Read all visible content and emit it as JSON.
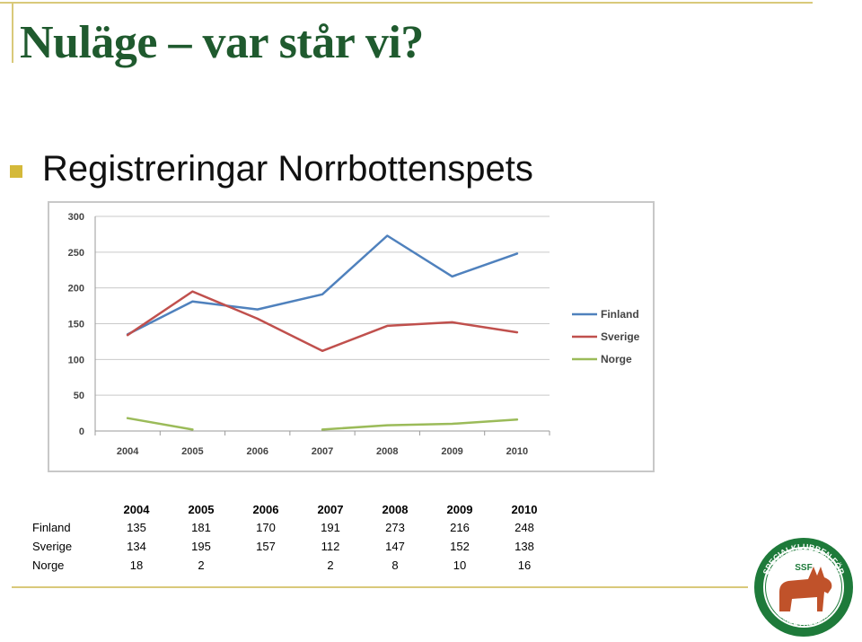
{
  "slide": {
    "title": "Nuläge – var står vi?",
    "bullet": "Registreringar Norrbottenspets"
  },
  "chart_data": {
    "type": "line",
    "categories": [
      "2004",
      "2005",
      "2006",
      "2007",
      "2008",
      "2009",
      "2010"
    ],
    "ylim": [
      0,
      300
    ],
    "yticks": [
      0,
      50,
      100,
      150,
      200,
      250,
      300
    ],
    "grid": true,
    "legend_position": "right",
    "series": [
      {
        "name": "Finland",
        "color": "#4f81bd",
        "values": [
          135,
          181,
          170,
          191,
          273,
          216,
          248
        ]
      },
      {
        "name": "Sverige",
        "color": "#c0504d",
        "values": [
          134,
          195,
          157,
          112,
          147,
          152,
          138
        ]
      },
      {
        "name": "Norge",
        "color": "#9bbb59",
        "values": [
          18,
          2,
          null,
          2,
          8,
          10,
          16
        ]
      }
    ]
  },
  "table": {
    "columns": [
      "2004",
      "2005",
      "2006",
      "2007",
      "2008",
      "2009",
      "2010"
    ],
    "rows": [
      {
        "label": "Finland",
        "values": [
          "135",
          "181",
          "170",
          "191",
          "273",
          "216",
          "248"
        ]
      },
      {
        "label": "Sverige",
        "values": [
          "134",
          "195",
          "157",
          "112",
          "147",
          "152",
          "138"
        ]
      },
      {
        "label": "Norge",
        "values": [
          "18",
          "2",
          "",
          "2",
          "8",
          "10",
          "16"
        ]
      }
    ]
  },
  "logo": {
    "text_top": "SPECIALKLUBBEN FÖR",
    "text_mid": "SSF",
    "text_bottom": "SKÄLLANDE FÅGELHUNDAR",
    "ring_color": "#1e7a3a",
    "dog_color": "#c0522a"
  }
}
